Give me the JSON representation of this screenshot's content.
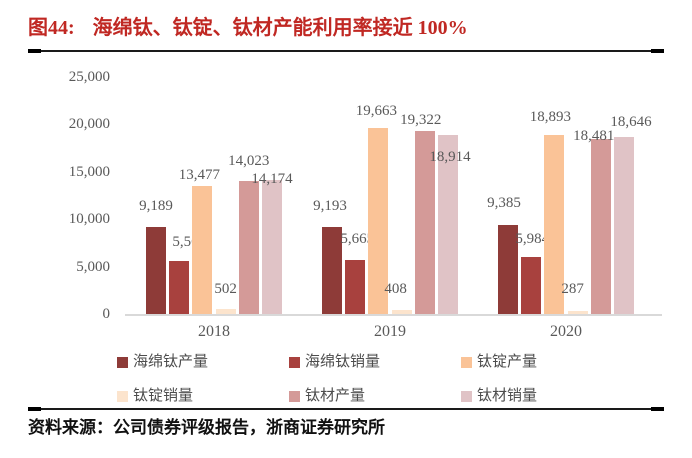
{
  "title": {
    "prefix": "图44:",
    "text": "海绵钛、钛锭、钛材产能利用率接近 100%"
  },
  "source": "资料来源：公司债券评级报告，浙商证券研究所",
  "colors": {
    "title_red": "#C02823",
    "axis_text": "#595959",
    "label_text": "#595959",
    "legend_text": "#4d4d4d",
    "baseline": "#D9D9D9",
    "rule": "#1a1a1a"
  },
  "chart_data": {
    "type": "bar",
    "title": "海绵钛、钛锭、钛材产能利用率接近 100%",
    "categories": [
      "2018",
      "2019",
      "2020"
    ],
    "series": [
      {
        "name": "海绵钛产量",
        "color": "#8E3B38",
        "values": [
          9189,
          9193,
          9385
        ]
      },
      {
        "name": "海绵钛销量",
        "color": "#A8413E",
        "values": [
          5564,
          5665,
          5984
        ]
      },
      {
        "name": "钛锭产量",
        "color": "#FAC397",
        "values": [
          13477,
          19663,
          18893
        ]
      },
      {
        "name": "钛锭销量",
        "color": "#FCE4CD",
        "values": [
          502,
          408,
          287
        ]
      },
      {
        "name": "钛材产量",
        "color": "#D49A98",
        "values": [
          14023,
          19322,
          18481
        ]
      },
      {
        "name": "钛材销量",
        "color": "#E0C3C6",
        "values": [
          14174,
          18914,
          18646
        ]
      }
    ],
    "ylim": [
      0,
      25000
    ],
    "ytick_labels": [
      "0",
      "5,000",
      "10,000",
      "15,000",
      "20,000",
      "25,000"
    ],
    "ytick_values": [
      0,
      5000,
      10000,
      15000,
      20000,
      25000
    ],
    "grid": false,
    "data_labels": true,
    "legend_position": "bottom"
  }
}
